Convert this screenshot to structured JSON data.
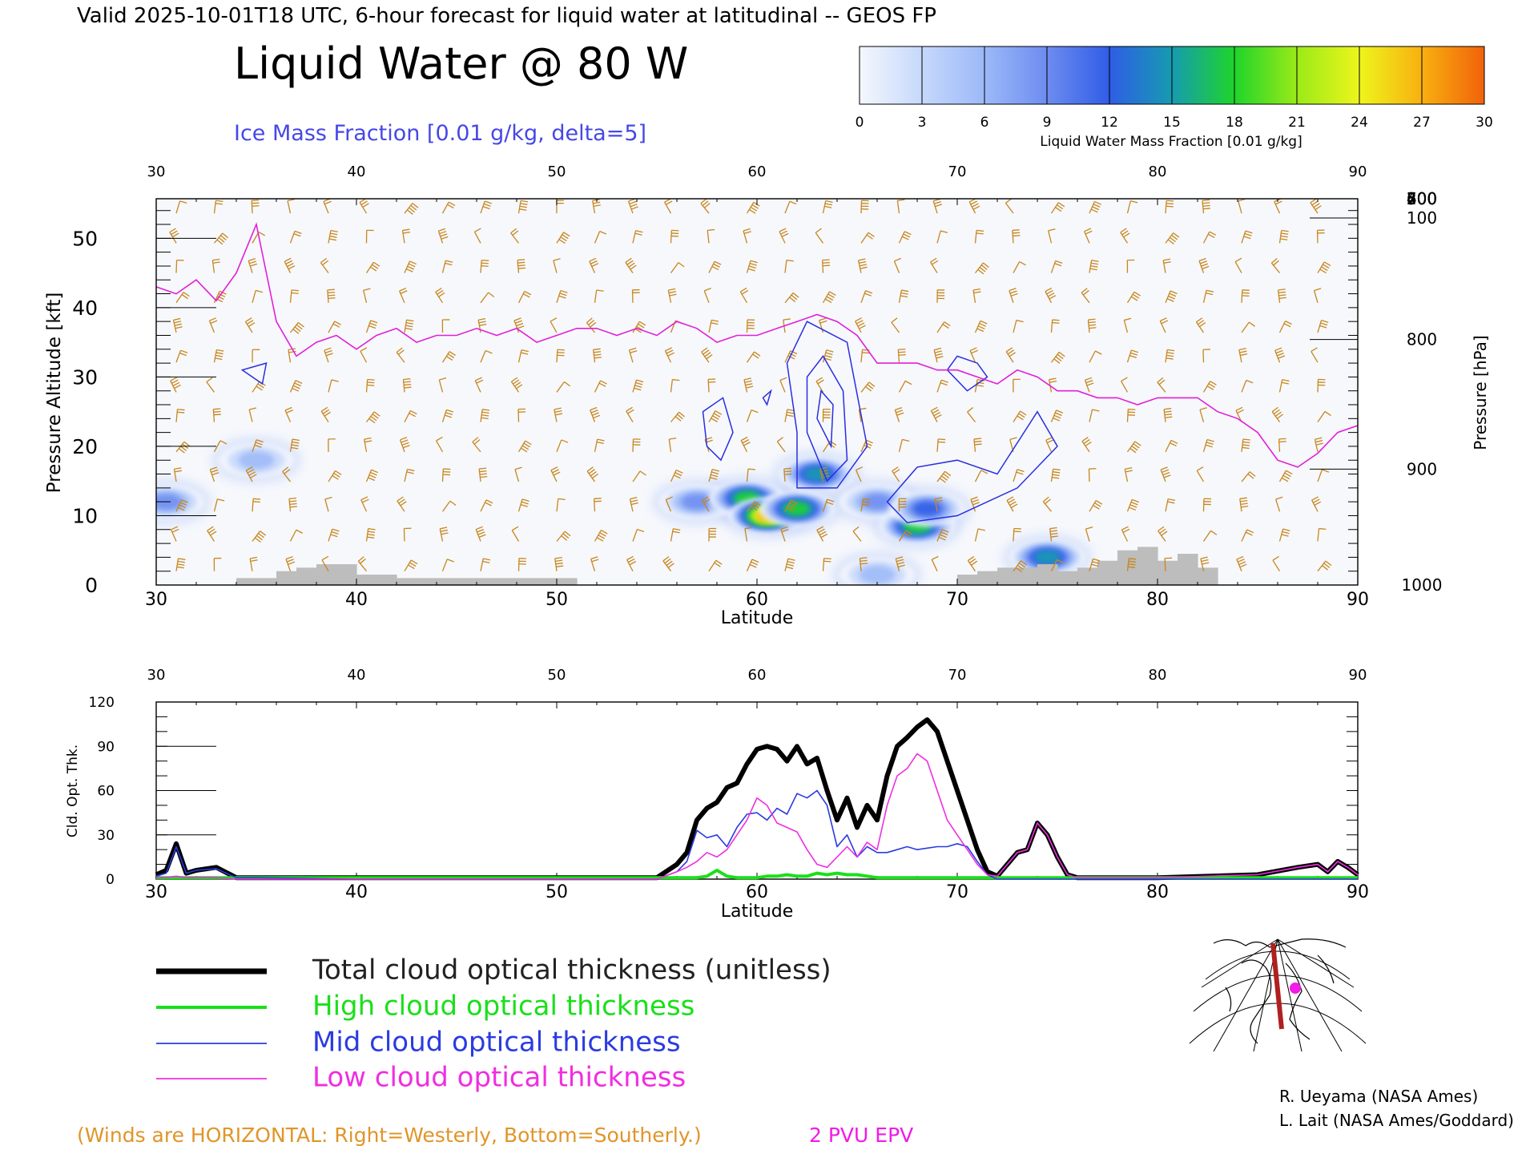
{
  "header": {
    "valid_line": "Valid 2025-10-01T18 UTC, 6-hour forecast for liquid water at latitudinal -- GEOS FP",
    "title": "Liquid Water @ 80 W",
    "subtitle": "Ice Mass Fraction [0.01 g/kg, delta=5]"
  },
  "colorbar": {
    "ticks": [
      "0",
      "3",
      "6",
      "9",
      "12",
      "15",
      "18",
      "21",
      "24",
      "27",
      "30"
    ],
    "label": "Liquid Water Mass Fraction [0.01 g/kg]",
    "colors": [
      "#f4f7fd",
      "#c6d8fb",
      "#9cb9f8",
      "#6d8cf0",
      "#2f5de6",
      "#169bb0",
      "#1fd42b",
      "#9aea18",
      "#eef51c",
      "#f8b010",
      "#f1620a",
      "#e41818"
    ]
  },
  "top_panel": {
    "ylabel_left": "Pressure Altitude [kft]",
    "ylabel_right": "Pressure [hPa]",
    "xlabel": "Latitude",
    "x_ticks": [
      "30",
      "40",
      "50",
      "60",
      "70",
      "80",
      "90"
    ],
    "y_ticks_left": [
      "0",
      "10",
      "20",
      "30",
      "40",
      "50"
    ],
    "y_ticks_right": [
      "100",
      "200",
      "300",
      "400",
      "500",
      "600",
      "700",
      "800",
      "900",
      "1000"
    ]
  },
  "bottom_panel": {
    "ylabel": "Cld. Opt. Thk.",
    "xlabel": "Latitude",
    "x_ticks": [
      "30",
      "40",
      "50",
      "60",
      "70",
      "80",
      "90"
    ],
    "y_ticks": [
      "0",
      "30",
      "60",
      "90",
      "120"
    ]
  },
  "legend": {
    "items": [
      {
        "label": "Total cloud optical thickness (unitless)",
        "color": "#000000"
      },
      {
        "label": "High cloud optical thickness",
        "color": "#19e019"
      },
      {
        "label": "Mid cloud optical thickness",
        "color": "#2b3be0"
      },
      {
        "label": "Low cloud optical thickness",
        "color": "#f02ee0"
      }
    ]
  },
  "footer": {
    "winds_note": "(Winds are HORIZONTAL: Right=Westerly, Bottom=Southerly.)",
    "epv_note": "2 PVU EPV",
    "credit1": "R. Ueyama (NASA Ames)",
    "credit2": "L. Lait (NASA Ames/Goddard)"
  },
  "chart_data": [
    {
      "type": "heatmap",
      "title": "Liquid Water @ 80 W",
      "xlabel": "Latitude",
      "ylabel": "Pressure Altitude [kft]",
      "xlim": [
        30,
        90
      ],
      "ylim": [
        0,
        55
      ],
      "liquid_water_blobs": [
        {
          "lat": 30.5,
          "alt": 12,
          "level": 9
        },
        {
          "lat": 35,
          "alt": 18,
          "level": 6
        },
        {
          "lat": 57,
          "alt": 12,
          "level": 9
        },
        {
          "lat": 59.5,
          "alt": 12.5,
          "level": 18
        },
        {
          "lat": 60.5,
          "alt": 10,
          "level": 27
        },
        {
          "lat": 62,
          "alt": 11,
          "level": 18
        },
        {
          "lat": 63,
          "alt": 16,
          "level": 15
        },
        {
          "lat": 66,
          "alt": 12,
          "level": 9
        },
        {
          "lat": 68,
          "alt": 8.5,
          "level": 18
        },
        {
          "lat": 68.5,
          "alt": 11,
          "level": 12
        },
        {
          "lat": 74.5,
          "alt": 4,
          "level": 15
        },
        {
          "lat": 66,
          "alt": 1.5,
          "level": 6
        }
      ],
      "epv_2pvu_lat": [
        30,
        31,
        32,
        33,
        34,
        35,
        35.5,
        36,
        37,
        38,
        39,
        40,
        41,
        42,
        43,
        44,
        45,
        46,
        47,
        48,
        49,
        50,
        51,
        52,
        53,
        54,
        55,
        56,
        57,
        58,
        59,
        60,
        61,
        62,
        63,
        64,
        65,
        66,
        67,
        68,
        69,
        70,
        71,
        72,
        73,
        74,
        75,
        76,
        77,
        78,
        79,
        80,
        81,
        82,
        83,
        84,
        85,
        86,
        87,
        88,
        89,
        90
      ],
      "epv_2pvu_alt": [
        43,
        42,
        44,
        41,
        45,
        52,
        45,
        38,
        33,
        35,
        36,
        34,
        36,
        37,
        35,
        36,
        36,
        37,
        36,
        37,
        35,
        36,
        37,
        37,
        36,
        37,
        36,
        38,
        37,
        35,
        36,
        36,
        37,
        38,
        39,
        38,
        36,
        32,
        32,
        32,
        31,
        31,
        30,
        29,
        31,
        30,
        28,
        28,
        27,
        27,
        26,
        27,
        27,
        27,
        25,
        24,
        22,
        18,
        17,
        19,
        22,
        23
      ],
      "terrain_lat": [
        34.5,
        35.5,
        36.5,
        37.5,
        38.5,
        39.5,
        40.5,
        41.5,
        42.5,
        43.5,
        44.5,
        45.5,
        46.5,
        47.5,
        48.5,
        49.5,
        50.5,
        70.5,
        71.5,
        72.5,
        73.5,
        74.5,
        75.5,
        76.5,
        77.5,
        78.5,
        79.5,
        80.5,
        81.5,
        82.5
      ],
      "terrain_alt": [
        1,
        1,
        2,
        2.5,
        3,
        3,
        1.5,
        1.5,
        1,
        1,
        1,
        1,
        1,
        1,
        1,
        1,
        1,
        1.5,
        2,
        2.5,
        2.5,
        3,
        2,
        2.5,
        3.5,
        5,
        5.5,
        3.5,
        4.5,
        2.5
      ]
    },
    {
      "type": "line",
      "xlabel": "Latitude",
      "ylabel": "Cld. Opt. Thk.",
      "xlim": [
        30,
        90
      ],
      "ylim": [
        0,
        120
      ],
      "x": [
        30,
        30.5,
        31,
        31.5,
        32,
        33,
        34,
        35,
        40,
        45,
        50,
        55,
        56,
        56.5,
        57,
        57.5,
        58,
        58.5,
        59,
        59.5,
        60,
        60.5,
        61,
        61.5,
        62,
        62.5,
        63,
        63.5,
        64,
        64.5,
        65,
        65.5,
        66,
        66.5,
        67,
        67.5,
        68,
        68.5,
        69,
        69.5,
        70,
        70.5,
        71,
        71.5,
        72,
        72.5,
        73,
        73.5,
        74,
        74.5,
        75,
        75.5,
        76,
        80,
        85,
        87,
        88,
        88.5,
        89,
        89.5,
        90
      ],
      "series": [
        {
          "name": "Total cloud optical thickness (unitless)",
          "values": [
            3,
            6,
            24,
            4,
            6,
            8,
            1,
            1,
            1,
            1,
            1,
            1,
            10,
            18,
            40,
            48,
            52,
            62,
            65,
            78,
            88,
            90,
            88,
            80,
            90,
            78,
            82,
            60,
            40,
            55,
            35,
            50,
            40,
            70,
            90,
            96,
            103,
            108,
            100,
            80,
            60,
            40,
            20,
            5,
            2,
            10,
            18,
            20,
            38,
            30,
            15,
            3,
            1,
            1,
            3,
            8,
            10,
            5,
            12,
            8,
            3
          ]
        },
        {
          "name": "High cloud optical thickness",
          "values": [
            1,
            1,
            1,
            1,
            1,
            1,
            1,
            1,
            1,
            1,
            1,
            1,
            1,
            1,
            1,
            2,
            6,
            2,
            1,
            1,
            1,
            2,
            2,
            3,
            2,
            2,
            4,
            3,
            4,
            3,
            3,
            2,
            1,
            1,
            1,
            1,
            1,
            1,
            1,
            1,
            1,
            1,
            1,
            1,
            1,
            1,
            1,
            1,
            1,
            1,
            1,
            1,
            1,
            1,
            1,
            1,
            1,
            1,
            1,
            1,
            1
          ]
        },
        {
          "name": "Mid cloud optical thickness",
          "values": [
            2,
            4,
            22,
            4,
            6,
            7,
            1,
            1,
            0,
            0,
            0,
            0,
            5,
            12,
            33,
            28,
            30,
            22,
            35,
            44,
            45,
            40,
            48,
            44,
            58,
            55,
            60,
            50,
            22,
            30,
            15,
            22,
            18,
            18,
            20,
            22,
            20,
            21,
            22,
            22,
            24,
            22,
            12,
            3,
            0,
            0,
            0,
            0,
            0,
            0,
            0,
            0,
            0,
            0,
            0,
            0,
            0,
            0,
            0,
            0,
            0
          ]
        },
        {
          "name": "Low cloud optical thickness",
          "values": [
            1,
            1,
            2,
            1,
            1,
            1,
            0,
            0,
            0,
            0,
            0,
            0,
            5,
            8,
            12,
            18,
            15,
            20,
            30,
            40,
            55,
            50,
            38,
            35,
            32,
            20,
            10,
            8,
            15,
            22,
            15,
            25,
            20,
            50,
            70,
            75,
            85,
            80,
            60,
            40,
            30,
            20,
            10,
            3,
            2,
            10,
            18,
            20,
            38,
            30,
            15,
            3,
            1,
            1,
            3,
            8,
            10,
            5,
            12,
            8,
            3
          ]
        }
      ]
    }
  ]
}
